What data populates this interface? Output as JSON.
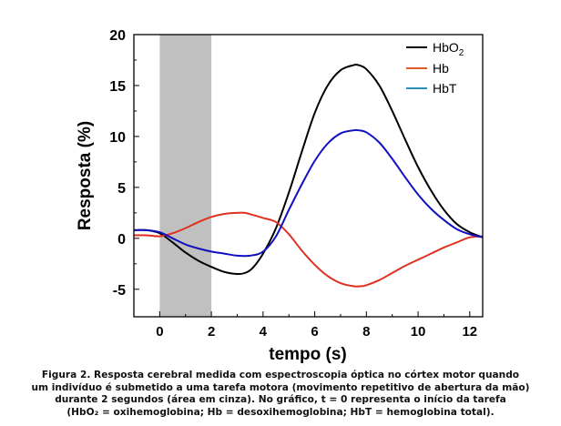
{
  "chart_data": {
    "type": "line",
    "title": "",
    "xlabel": "tempo (s)",
    "ylabel": "Resposta (%)",
    "xlim": [
      -1.0,
      12.5
    ],
    "ylim": [
      -7.7,
      20
    ],
    "xticks": [
      0,
      2,
      4,
      6,
      8,
      10,
      12
    ],
    "yticks": [
      -5,
      0,
      5,
      10,
      15,
      20
    ],
    "grid": false,
    "shaded_region": {
      "x": [
        0,
        2
      ],
      "label": "área em cinza",
      "color": "#c0c0c0"
    },
    "legend": {
      "placement": "top-right",
      "entries": [
        "HbO2",
        "Hb",
        "HbT"
      ]
    },
    "series": [
      {
        "name": "HbO2",
        "color": "#000000",
        "x": [
          -1.0,
          -0.5,
          0,
          0.5,
          1,
          1.5,
          2,
          2.5,
          3,
          3.3,
          3.6,
          4,
          4.5,
          5,
          5.5,
          6,
          6.5,
          7,
          7.5,
          7.7,
          8,
          8.5,
          9,
          9.5,
          10,
          10.5,
          11,
          11.5,
          12,
          12.5
        ],
        "y": [
          0.8,
          0.8,
          0.5,
          -0.4,
          -1.4,
          -2.2,
          -2.8,
          -3.3,
          -3.5,
          -3.4,
          -2.9,
          -1.5,
          1.0,
          4.5,
          8.5,
          12.3,
          15.0,
          16.5,
          17.0,
          17.0,
          16.6,
          15.0,
          12.5,
          9.7,
          7.0,
          4.7,
          2.8,
          1.4,
          0.6,
          0.1
        ]
      },
      {
        "name": "Hb",
        "color": "#e03020",
        "x": [
          -1.0,
          -0.5,
          0,
          0.5,
          1,
          1.5,
          2,
          2.5,
          3,
          3.3,
          3.6,
          4,
          4.5,
          5,
          5.5,
          6,
          6.5,
          7,
          7.5,
          7.8,
          8,
          8.5,
          9,
          9.5,
          10,
          10.5,
          11,
          11.5,
          12,
          12.5
        ],
        "y": [
          0.3,
          0.3,
          0.2,
          0.5,
          1.0,
          1.6,
          2.1,
          2.4,
          2.5,
          2.5,
          2.3,
          2.0,
          1.6,
          0.4,
          -1.2,
          -2.6,
          -3.7,
          -4.4,
          -4.7,
          -4.7,
          -4.6,
          -4.1,
          -3.4,
          -2.7,
          -2.1,
          -1.5,
          -0.9,
          -0.4,
          0.1,
          0.2
        ]
      },
      {
        "name": "HbT",
        "color": "#1010c0",
        "x": [
          -1.0,
          -0.5,
          0,
          0.5,
          1,
          1.5,
          2,
          2.5,
          3,
          3.5,
          4,
          4.5,
          5,
          5.5,
          6,
          6.5,
          7,
          7.5,
          7.7,
          8,
          8.5,
          9,
          9.5,
          10,
          10.5,
          11,
          11.5,
          12,
          12.5
        ],
        "y": [
          0.8,
          0.8,
          0.6,
          0.0,
          -0.6,
          -1.0,
          -1.3,
          -1.5,
          -1.7,
          -1.7,
          -1.3,
          0.2,
          2.8,
          5.3,
          7.6,
          9.3,
          10.3,
          10.6,
          10.6,
          10.4,
          9.4,
          7.8,
          6.0,
          4.3,
          2.9,
          1.8,
          0.9,
          0.4,
          0.1
        ]
      }
    ]
  },
  "legend_labels": {
    "hbo2_main": "HbO",
    "hbo2_sub": "2",
    "hb": "Hb",
    "hbt": "HbT",
    "hbo2_full": "HbO2"
  },
  "caption": {
    "lines": [
      "Figura 2. Resposta cerebral medida com espectroscopia óptica no córtex motor quando",
      "um indivíduo é submetido a uma tarefa motora (movimento repetitivo de abertura da mão)",
      "durante 2 segundos (área em cinza). No gráfico, t = 0 representa o início da tarefa",
      "(HbO₂ = oxihemoglobina; Hb = desoxihemoglobina; HbT = hemoglobina total)."
    ]
  }
}
